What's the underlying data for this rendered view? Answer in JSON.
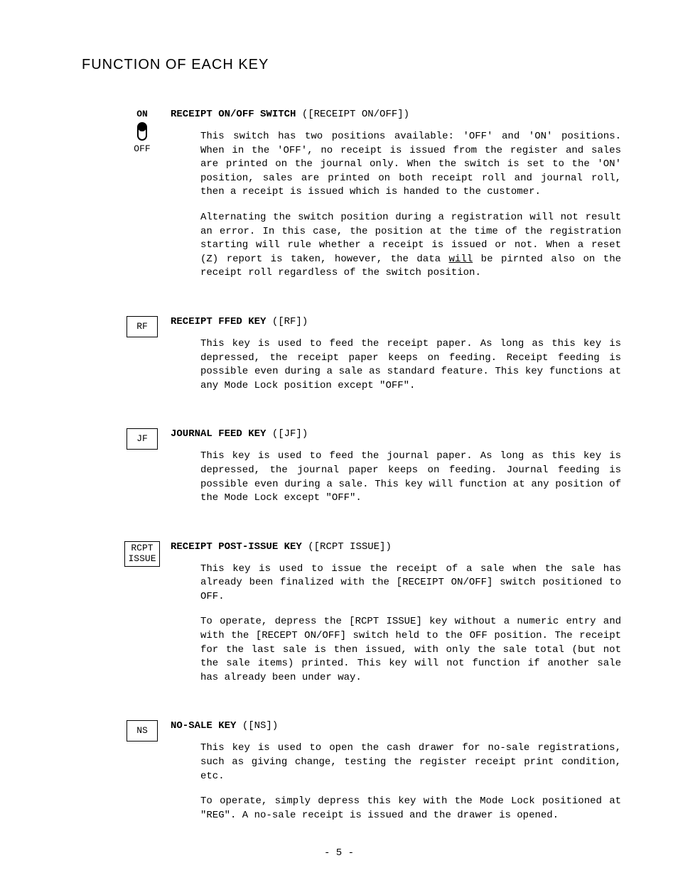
{
  "page_title": "FUNCTION OF EACH KEY",
  "entries": [
    {
      "switch": {
        "on": "ON",
        "off": "OFF"
      },
      "heading_bold": "RECEIPT ON/OFF SWITCH",
      "heading_rest": " ([RECEIPT ON/OFF])",
      "paras": [
        "This switch has two positions available: 'OFF' and 'ON' positions. When in the 'OFF', no receipt is issued from the register and sales are printed on the journal only.  When the switch is set to the 'ON' position, sales are printed on both receipt roll and journal roll, then a receipt is issued which is handed to the customer.",
        "Alternating the switch position during a registration will not result an error.  In this case, the position at the time of the registration starting will rule whether a receipt is issued or not.  When a reset (Z) report is taken, however, the data <u>will</u> be pirnted also on the receipt roll regardless of the switch position."
      ]
    },
    {
      "key_label": "RF",
      "heading_bold": "RECEIPT FFED KEY",
      "heading_rest": " ([RF])",
      "paras": [
        "This key is used to feed the receipt paper.  As long as this key is depressed, the receipt paper keeps on feeding.  Receipt feeding is possible even during a sale as standard feature.  This key functions at any Mode Lock position except \"OFF\"."
      ]
    },
    {
      "key_label": "JF",
      "heading_bold": "JOURNAL FEED KEY",
      "heading_rest": " ([JF])",
      "paras": [
        "This key is used to feed the journal paper.  As long as this key is depressed, the journal paper keeps on feeding.  Journal feeding is possible even during a sale.  This key will function at any position of the Mode Lock except \"OFF\"."
      ]
    },
    {
      "key_lines": [
        "RCPT",
        "ISSUE"
      ],
      "heading_bold": "RECEIPT POST-ISSUE KEY",
      "heading_rest": " ([RCPT ISSUE])",
      "paras": [
        "This key is used to issue the receipt of a sale when the sale has already been finalized with the [RECEIPT ON/OFF] switch positioned to OFF.",
        "To operate, depress the [RCPT ISSUE] key without a numeric entry and with the [RECEPT ON/OFF] switch held to the OFF position.  The receipt for the last sale is then issued, with only the sale total (but not the sale items) printed.  This key will not function if another sale has already been under way."
      ]
    },
    {
      "key_label": "NS",
      "heading_bold": "NO-SALE KEY",
      "heading_rest": " ([NS])",
      "paras": [
        "This key is used to open the cash drawer for no-sale registrations, such as giving change, testing the register receipt print condition, etc.",
        "To operate, simply depress this key with  the Mode Lock positioned at \"REG\". A no-sale receipt is issued and the drawer is opened."
      ]
    }
  ],
  "page_number": "- 5 -"
}
